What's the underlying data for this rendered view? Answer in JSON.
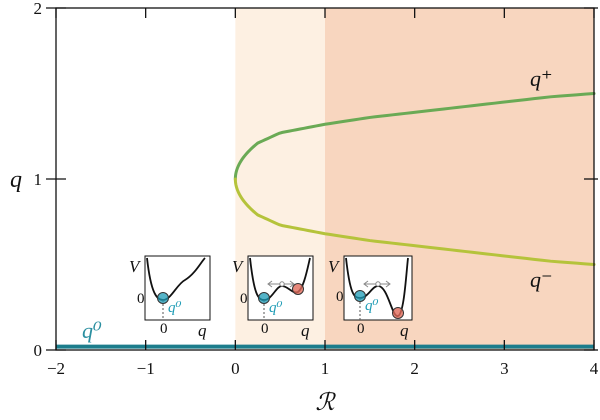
{
  "chart_data": {
    "type": "line",
    "xlabel": "ℛ",
    "ylabel": "q",
    "xlim": [
      -2,
      4
    ],
    "ylim": [
      0,
      2
    ],
    "x_ticks": [
      "−2",
      "−1",
      "0",
      "1",
      "2",
      "3",
      "4"
    ],
    "y_ticks": [
      "0",
      "1",
      "2"
    ],
    "shaded_regions": [
      {
        "x_from": 0,
        "x_to": 1,
        "color": "#fdf0e2"
      },
      {
        "x_from": 1,
        "x_to": 4,
        "color": "#f8d6bf"
      }
    ],
    "series": [
      {
        "name": "q⁰",
        "color": "#1c7d8c",
        "x": [
          -2,
          4
        ],
        "y": [
          0.02,
          0.02
        ]
      },
      {
        "name": "q⁺",
        "color": "#6aaa55",
        "x": [
          0,
          0.25,
          0.5,
          1,
          1.5,
          2,
          2.5,
          3,
          3.5,
          4
        ],
        "y": [
          1.0,
          1.21,
          1.27,
          1.32,
          1.36,
          1.39,
          1.42,
          1.45,
          1.48,
          1.5
        ]
      },
      {
        "name": "q⁻",
        "color": "#b5c33b",
        "x": [
          0,
          0.25,
          0.5,
          1,
          1.5,
          2,
          2.5,
          3,
          3.5,
          4
        ],
        "y": [
          1.0,
          0.79,
          0.73,
          0.68,
          0.64,
          0.61,
          0.58,
          0.55,
          0.52,
          0.5
        ]
      }
    ],
    "annotations": [
      {
        "text": "q⁺",
        "color": "#111111"
      },
      {
        "text": "q⁻",
        "color": "#111111"
      },
      {
        "text": "q⁰",
        "color": "#2a8fa0"
      }
    ],
    "insets": [
      {
        "ylabel": "V",
        "xlabel": "q",
        "zero": "0",
        "marker_label": "q⁰",
        "marker_color": "#1c9bb5",
        "stable_minima": 1
      },
      {
        "ylabel": "V",
        "xlabel": "q",
        "zero": "0",
        "marker_label": "q⁰",
        "marker_color": "#1c9bb5",
        "second_marker_color": "#e06a5a"
      },
      {
        "ylabel": "V",
        "xlabel": "q",
        "zero": "0",
        "marker_label": "q⁰",
        "marker_color": "#1c9bb5",
        "second_marker_color": "#e06a5a"
      }
    ]
  }
}
